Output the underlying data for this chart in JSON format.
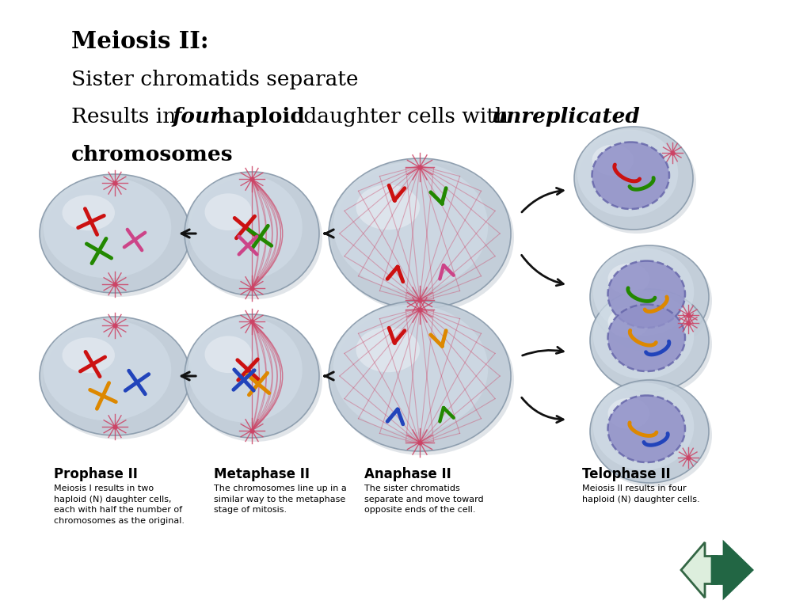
{
  "bg_color": "#ffffff",
  "title_bold": "Meiosis II:",
  "title_line2": "Sister chromatids separate",
  "title_line3a": "Results in ",
  "title_line3b_italic": "four",
  "title_line3c_bold": " haploid",
  "title_line3d": " daughter cells with ",
  "title_line3e_italic": "unreplicated",
  "title_line4_bold": "chromosomes",
  "phases": [
    "Prophase II",
    "Metaphase II",
    "Anaphase II",
    "Telophase II"
  ],
  "phase_descs": [
    "Meiosis I results in two\nhaploid (N) daughter cells,\neach with half the number of\nchromosomes as the original.",
    "The chromosomes line up in a\nsimilar way to the metaphase\nstage of mitosis.",
    "The sister chromatids\nseparate and move toward\nopposite ends of the cell.",
    "Meiosis II results in four\nhaploid (N) daughter cells."
  ],
  "cell_outer": "#c0ccd8",
  "cell_mid": "#d0dce6",
  "cell_inner": "#dde6ee",
  "cell_highlight": "#eef2f6",
  "nuc_fill": "#9090c8",
  "nuc_edge": "#6666aa",
  "spindle_color": "#cc4466",
  "c_red": "#cc1111",
  "c_green": "#228800",
  "c_orange": "#dd8800",
  "c_blue": "#2244bb",
  "c_pink": "#cc4488",
  "arrow_color": "#111111",
  "text_color": "#000000",
  "nav_left_fill": "#ddeedd",
  "nav_left_edge": "#336644",
  "nav_right_fill": "#226644",
  "nav_right_edge": "#226644"
}
